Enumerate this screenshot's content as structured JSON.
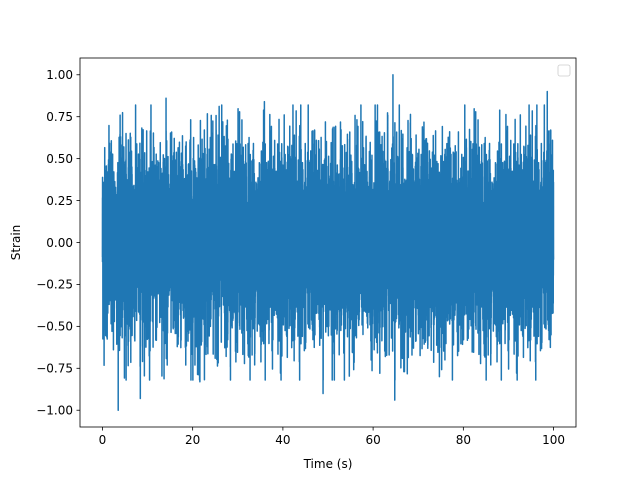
{
  "chart_data": {
    "type": "line",
    "title": "",
    "xlabel": "Time (s)",
    "ylabel": "Strain",
    "xlim": [
      -4.97,
      104.97
    ],
    "ylim": [
      -1.1,
      1.1
    ],
    "xticks": [
      0,
      20,
      40,
      60,
      80,
      100
    ],
    "xtick_labels": [
      "0",
      "20",
      "40",
      "60",
      "80",
      "100"
    ],
    "yticks": [
      -1.0,
      -0.75,
      -0.5,
      -0.25,
      0.0,
      0.25,
      0.5,
      0.75,
      1.0
    ],
    "ytick_labels": [
      "−1.00",
      "−0.75",
      "−0.50",
      "−0.25",
      "0.00",
      "0.25",
      "0.50",
      "0.75",
      "1.00"
    ],
    "grid": false,
    "legend": {
      "placement": "top-right",
      "entries": []
    },
    "line_color": "#1f77b4",
    "series": [
      {
        "sample_count": 10000,
        "x_range": [
          0,
          100
        ],
        "y_range": [
          -1.0,
          1.0
        ],
        "typical_band": [
          -0.45,
          0.45
        ],
        "extremes": [
          {
            "x": 3.5,
            "y": -1.0
          },
          {
            "x": 8.4,
            "y": -0.93
          },
          {
            "x": 14.1,
            "y": 0.86
          },
          {
            "x": 21.6,
            "y": -0.83
          },
          {
            "x": 35.9,
            "y": 0.84
          },
          {
            "x": 48.9,
            "y": -0.9
          },
          {
            "x": 64.4,
            "y": 1.0
          },
          {
            "x": 64.8,
            "y": -0.94
          },
          {
            "x": 74.7,
            "y": -0.8
          },
          {
            "x": 98.6,
            "y": 0.9
          }
        ]
      }
    ]
  }
}
